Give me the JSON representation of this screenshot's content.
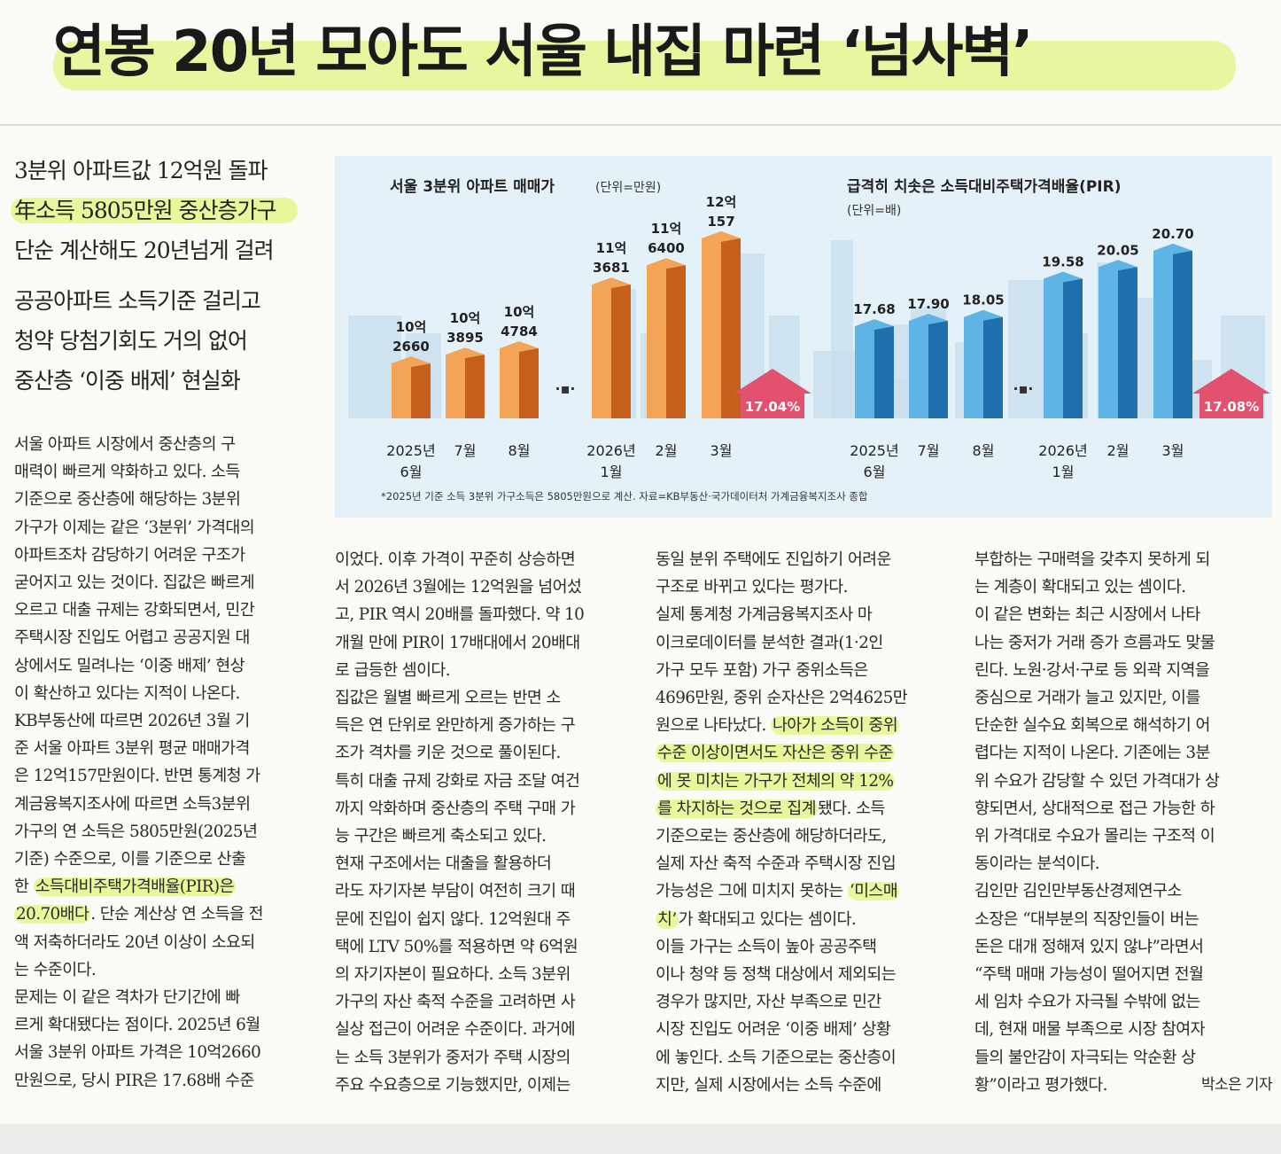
{
  "headline": "연봉 20년 모아도 서울 내집 마련 ‘넘사벽’",
  "subheads": [
    "3분위 아파트값 12억원 돌파",
    "年소득 5805만원 중산층가구",
    "단순 계산해도 20년넘게 걸려",
    "공공아파트 소득기준 걸리고",
    "청약 당첨기회도 거의 없어",
    "중산층 ‘이중 배제’ 현실화"
  ],
  "columns": {
    "col1": [
      "  서울 아파트 시장에서 중산층의 구",
      "매력이 빠르게 약화하고 있다. 소득",
      "기준으로 중산층에 해당하는 3분위",
      "가구가 이제는 같은 ‘3분위’ 가격대의",
      "아파트조차 감당하기 어려운 구조가",
      "굳어지고 있는 것이다. 집값은 빠르게",
      "오르고 대출 규제는 강화되면서, 민간",
      "주택시장 진입도 어렵고 공공지원 대",
      "상에서도 밀려나는 ‘이중 배제’ 현상",
      "이 확산하고 있다는 지적이 나온다.",
      "  KB부동산에 따르면 2026년 3월 기",
      "준 서울 아파트 3분위 평균 매매가격",
      "은 12억157만원이다. 반면 통계청 가",
      "계금융복지조사에 따르면 소득3분위",
      "가구의 연 소득은 5805만원(2025년",
      "기준) 수준으로, 이를 기준으로 산출",
      "한 소득대비주택가격배율(PIR)은",
      "20.70배다. 단순 계산상 연 소득을 전",
      "액 저축하더라도 20년 이상이 소요되",
      "는 수준이다.",
      "  문제는 이 같은 격차가 단기간에 빠",
      "르게 확대됐다는 점이다. 2025년 6월",
      "서울 3분위 아파트 가격은 10억2660",
      "만원으로, 당시 PIR은 17.68배 수준"
    ],
    "col2": [
      "이었다. 이후 가격이 꾸준히 상승하면",
      "서 2026년 3월에는 12억원을 넘어섰",
      "고, PIR 역시 20배를 돌파했다. 약 10",
      "개월 만에 PIR이 17배대에서 20배대",
      "로 급등한 셈이다.",
      "  집값은 월별 빠르게 오르는 반면 소",
      "득은 연 단위로 완만하게 증가하는 구",
      "조가 격차를 키운 것으로 풀이된다.",
      "특히 대출 규제 강화로 자금 조달 여건",
      "까지 악화하며 중산층의 주택 구매 가",
      "능 구간은 빠르게 축소되고 있다.",
      "  현재 구조에서는 대출을 활용하더",
      "라도 자기자본 부담이 여전히 크기 때",
      "문에 진입이 쉽지 않다. 12억원대 주",
      "택에 LTV 50%를 적용하면 약 6억원",
      "의 자기자본이 필요하다. 소득 3분위",
      "가구의 자산 축적 수준을 고려하면 사",
      "실상 접근이 어려운 수준이다. 과거에",
      "는 소득 3분위가 중저가 주택 시장의",
      "주요 수요층으로 기능했지만, 이제는"
    ],
    "col3": [
      "동일 분위 주택에도 진입하기 어려운",
      "구조로 바뀌고 있다는 평가다.",
      "  실제 통계청 가계금융복지조사 마",
      "이크로데이터를 분석한 결과(1·2인",
      "가구 모두 포함) 가구 중위소득은",
      "4696만원, 중위 순자산은 2억4625만",
      "원으로 나타났다. 나아가 소득이 중위",
      "수준 이상이면서도 자산은 중위 수준",
      "에 못 미치는 가구가 전체의 약 12%",
      "를 차지하는 것으로 집계됐다. 소득",
      "기준으로는 중산층에 해당하더라도,",
      "실제 자산 축적 수준과 주택시장 진입",
      "가능성은 그에 미치지 못하는 ‘미스매",
      "치’가 확대되고 있다는 셈이다.",
      "  이들 가구는 소득이 높아 공공주택",
      "이나 청약 등 정책 대상에서 제외되는",
      "경우가 많지만, 자산 부족으로 민간",
      "시장 진입도 어려운 ‘이중 배제’ 상황",
      "에 놓인다. 소득 기준으로는 중산층이",
      "지만, 실제 시장에서는 소득 수준에"
    ],
    "col4": [
      "부합하는 구매력을 갖추지 못하게 되",
      "는 계층이 확대되고 있는 셈이다.",
      "  이 같은 변화는 최근 시장에서 나타",
      "나는 중저가 거래 증가 흐름과도 맞물",
      "린다. 노원·강서·구로 등 외곽 지역을",
      "중심으로 거래가 늘고 있지만, 이를",
      "단순한 실수요 회복으로 해석하기 어",
      "렵다는 지적이 나온다. 기존에는 3분",
      "위 수요가 감당할 수 있던 가격대가 상",
      "향되면서, 상대적으로 접근 가능한 하",
      "위 가격대로 수요가 몰리는 구조적 이",
      "동이라는 분석이다.",
      "  김인만 김인만부동산경제연구소",
      "소장은 “대부분의 직장인들이 버는",
      "돈은 대개 정해져 있지 않냐”라면서",
      "“주택 매매 가능성이 떨어지면 전월",
      "세 임차 수요가 자극될 수밖에 없는",
      "데, 현재 매물 부족으로 시장 참여자",
      "들의 불안감이 자극되는 악순환 상"
    ],
    "col4_last": "황”이라고 평가했다.",
    "byline": "박소은 기자"
  },
  "chart_data": [
    {
      "type": "bar",
      "title": "서울 3분위 아파트 매매가",
      "unit": "(단위=만원)",
      "categories": [
        "2025년 6월",
        "7월",
        "8월",
        "2026년 1월",
        "2월",
        "3월"
      ],
      "values": [
        102660,
        103895,
        104784,
        113681,
        116400,
        120157
      ],
      "value_labels": [
        [
          "10억",
          "2660"
        ],
        [
          "10억",
          "3895"
        ],
        [
          "10억",
          "4784"
        ],
        [
          "11억",
          "3681"
        ],
        [
          "11억",
          "6400"
        ],
        [
          "12억",
          "157"
        ]
      ],
      "increase_badge": "17.04%",
      "color": "#e07a2c"
    },
    {
      "type": "bar",
      "title": "급격히 치솟은 소득대비주택가격배율(PIR)",
      "unit": "(단위=배)",
      "categories": [
        "2025년 6월",
        "7월",
        "8월",
        "2026년 1월",
        "2월",
        "3월"
      ],
      "values": [
        17.68,
        17.9,
        18.05,
        19.58,
        20.05,
        20.7
      ],
      "value_labels": [
        [
          "17.68"
        ],
        [
          "17.90"
        ],
        [
          "18.05"
        ],
        [
          "19.58"
        ],
        [
          "20.05"
        ],
        [
          "20.70"
        ]
      ],
      "increase_badge": "17.08%",
      "color": "#2f8fd0"
    }
  ],
  "chart_footnote": "*2025년 기준 소득 3분위 가구소득은 5805만원으로 계산. 자료=KB부동산·국가데이터처 가계금융복지조사 종합",
  "axis_labels": {
    "first_line": [
      "2025년",
      "7월",
      "8월",
      "2026년",
      "2월",
      "3월"
    ],
    "second_line": [
      "6월",
      "",
      "",
      "1월",
      "",
      ""
    ]
  }
}
